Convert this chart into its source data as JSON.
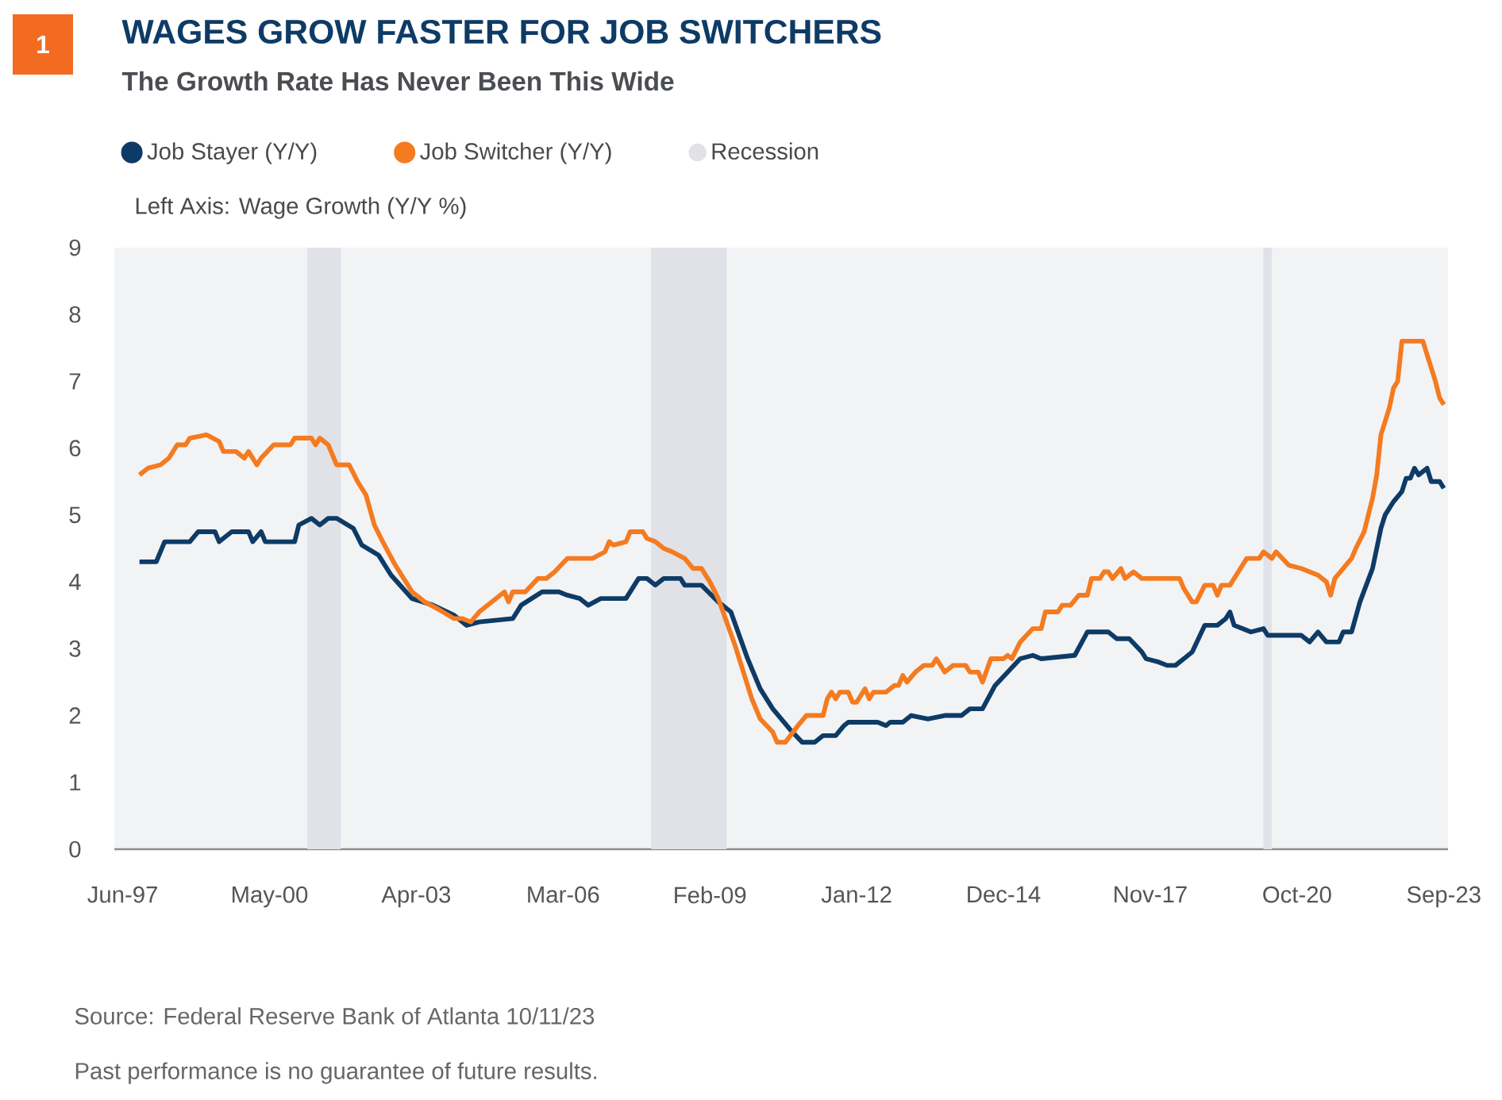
{
  "chart_data": {
    "type": "line",
    "title": "WAGES GROW FASTER FOR JOB SWITCHERS",
    "subtitle": "The Growth Rate Has Never Been This Wide",
    "ylabel": "Left Axis: Wage Growth (Y/Y %)",
    "annotations": [
      "1",
      "Source: Federal Reserve Bank of Atlanta 10/11/23",
      "Past performance is no guarantee of future results."
    ],
    "legend": "top",
    "xlim": [
      "1997-04",
      "2023-10"
    ],
    "xticks": [
      {
        "value": "1997-06",
        "label": "Jun-97"
      },
      {
        "value": "2000-05",
        "label": "May-00"
      },
      {
        "value": "2003-04",
        "label": "Apr-03"
      },
      {
        "value": "2006-03",
        "label": "Mar-06"
      },
      {
        "value": "2009-02",
        "label": "Feb-09"
      },
      {
        "value": "2012-01",
        "label": "Jan-12"
      },
      {
        "value": "2014-12",
        "label": "Dec-14"
      },
      {
        "value": "2017-11",
        "label": "Nov-17"
      },
      {
        "value": "2020-10",
        "label": "Oct-20"
      },
      {
        "value": "2023-09",
        "label": "Sep-23"
      }
    ],
    "ylim": [
      0,
      9
    ],
    "yticks": [
      0,
      1,
      2,
      3,
      4,
      5,
      6,
      7,
      8,
      9
    ],
    "bands": [
      {
        "axis": "x",
        "from": "2001-02",
        "to": "2001-10",
        "label": "Recession",
        "color": "#e1e2e8"
      },
      {
        "axis": "x",
        "from": "2007-12",
        "to": "2009-06",
        "color": "#e1e2e8"
      },
      {
        "axis": "x",
        "from": "2020-02",
        "to": "2020-04",
        "color": "#e1e2e8"
      }
    ],
    "series": [
      {
        "name": "Job Stayer (Y/Y)",
        "color": "#0e3b66",
        "x": [
          "1997-10",
          "1998-02",
          "1998-04",
          "1998-10",
          "1998-12",
          "1999-04",
          "1999-05",
          "1999-08",
          "1999-12",
          "2000-01",
          "2000-03",
          "2000-04",
          "2000-11",
          "2000-12",
          "2001-03",
          "2001-05",
          "2001-07",
          "2001-09",
          "2002-01",
          "2002-03",
          "2002-07",
          "2002-10",
          "2003-03",
          "2003-08",
          "2004-01",
          "2004-04",
          "2004-07",
          "2005-03",
          "2005-05",
          "2005-10",
          "2006-02",
          "2006-04",
          "2006-07",
          "2006-09",
          "2006-12",
          "2007-06",
          "2007-09",
          "2007-11",
          "2008-01",
          "2008-03",
          "2008-07",
          "2008-08",
          "2008-12",
          "2009-04",
          "2009-07",
          "2009-11",
          "2010-02",
          "2010-05",
          "2010-09",
          "2010-12",
          "2011-03",
          "2011-05",
          "2011-08",
          "2011-10",
          "2011-11",
          "2012-06",
          "2012-08",
          "2012-09",
          "2012-12",
          "2013-02",
          "2013-06",
          "2013-10",
          "2014-02",
          "2014-04",
          "2014-07",
          "2014-10",
          "2015-01",
          "2015-04",
          "2015-07",
          "2015-09",
          "2016-05",
          "2016-08",
          "2017-01",
          "2017-03",
          "2017-06",
          "2017-09",
          "2017-10",
          "2018-01",
          "2018-03",
          "2018-05",
          "2018-07",
          "2018-09",
          "2018-12",
          "2019-03",
          "2019-05",
          "2019-06",
          "2019-07",
          "2019-09",
          "2019-11",
          "2020-02",
          "2020-03",
          "2020-11",
          "2021-01",
          "2021-03",
          "2021-05",
          "2021-08",
          "2021-09",
          "2021-11",
          "2022-01",
          "2022-04",
          "2022-06",
          "2022-07",
          "2022-09",
          "2022-11",
          "2022-12",
          "2023-01",
          "2023-02",
          "2023-03",
          "2023-05",
          "2023-06",
          "2023-08",
          "2023-09"
        ],
        "values": [
          4.3,
          4.3,
          4.6,
          4.6,
          4.75,
          4.75,
          4.6,
          4.75,
          4.75,
          4.6,
          4.75,
          4.6,
          4.6,
          4.85,
          4.95,
          4.85,
          4.95,
          4.95,
          4.8,
          4.55,
          4.4,
          4.1,
          3.75,
          3.65,
          3.5,
          3.35,
          3.4,
          3.45,
          3.65,
          3.85,
          3.85,
          3.8,
          3.75,
          3.65,
          3.75,
          3.75,
          4.05,
          4.05,
          3.95,
          4.05,
          4.05,
          3.95,
          3.95,
          3.7,
          3.55,
          2.85,
          2.4,
          2.1,
          1.8,
          1.6,
          1.6,
          1.7,
          1.7,
          1.85,
          1.9,
          1.9,
          1.85,
          1.9,
          1.9,
          2.0,
          1.95,
          2.0,
          2.0,
          2.1,
          2.1,
          2.45,
          2.65,
          2.85,
          2.9,
          2.85,
          2.9,
          3.25,
          3.25,
          3.15,
          3.15,
          2.95,
          2.85,
          2.8,
          2.75,
          2.75,
          2.85,
          2.95,
          3.35,
          3.35,
          3.45,
          3.55,
          3.35,
          3.3,
          3.25,
          3.3,
          3.2,
          3.2,
          3.1,
          3.25,
          3.1,
          3.1,
          3.25,
          3.25,
          3.7,
          4.2,
          4.8,
          5.0,
          5.2,
          5.35,
          5.55,
          5.55,
          5.7,
          5.6,
          5.7,
          5.5,
          5.5,
          5.4
        ]
      },
      {
        "name": "Job Switcher (Y/Y)",
        "color": "#f47b20",
        "x": [
          "1997-10",
          "1997-12",
          "1998-03",
          "1998-05",
          "1998-07",
          "1998-09",
          "1998-10",
          "1999-02",
          "1999-05",
          "1999-06",
          "1999-09",
          "1999-11",
          "1999-12",
          "2000-02",
          "2000-03",
          "2000-06",
          "2000-10",
          "2000-11",
          "2001-03",
          "2001-04",
          "2001-05",
          "2001-07",
          "2001-09",
          "2001-12",
          "2002-02",
          "2002-04",
          "2002-06",
          "2002-08",
          "2002-11",
          "2003-03",
          "2003-06",
          "2003-09",
          "2004-01",
          "2004-03",
          "2004-05",
          "2004-07",
          "2004-11",
          "2005-01",
          "2005-02",
          "2005-03",
          "2005-06",
          "2005-09",
          "2005-11",
          "2006-01",
          "2006-04",
          "2006-10",
          "2007-01",
          "2007-02",
          "2007-03",
          "2007-06",
          "2007-07",
          "2007-10",
          "2007-11",
          "2008-01",
          "2008-03",
          "2008-05",
          "2008-08",
          "2008-10",
          "2008-12",
          "2009-02",
          "2009-04",
          "2009-06",
          "2009-08",
          "2009-10",
          "2009-12",
          "2010-02",
          "2010-05",
          "2010-06",
          "2010-08",
          "2010-11",
          "2011-01",
          "2011-05",
          "2011-06",
          "2011-07",
          "2011-08",
          "2011-09",
          "2011-11",
          "2011-12",
          "2012-01",
          "2012-02",
          "2012-03",
          "2012-04",
          "2012-05",
          "2012-08",
          "2012-10",
          "2012-11",
          "2012-12",
          "2013-01",
          "2013-03",
          "2013-05",
          "2013-07",
          "2013-08",
          "2013-09",
          "2013-10",
          "2013-12",
          "2014-03",
          "2014-04",
          "2014-06",
          "2014-07",
          "2014-09",
          "2014-12",
          "2015-01",
          "2015-02",
          "2015-04",
          "2015-07",
          "2015-09",
          "2015-10",
          "2016-01",
          "2016-02",
          "2016-04",
          "2016-06",
          "2016-08",
          "2016-09",
          "2016-11",
          "2016-12",
          "2017-01",
          "2017-02",
          "2017-04",
          "2017-05",
          "2017-07",
          "2017-09",
          "2018-06",
          "2018-07",
          "2018-09",
          "2018-10",
          "2018-12",
          "2019-02",
          "2019-03",
          "2019-04",
          "2019-06",
          "2019-08",
          "2019-10",
          "2020-01",
          "2020-02",
          "2020-04",
          "2020-05",
          "2020-08",
          "2020-11",
          "2021-01",
          "2021-03",
          "2021-05",
          "2021-06",
          "2021-07",
          "2021-11",
          "2021-12",
          "2022-02",
          "2022-04",
          "2022-05",
          "2022-06",
          "2022-08",
          "2022-09",
          "2022-10",
          "2022-11",
          "2023-04",
          "2023-05",
          "2023-07",
          "2023-08",
          "2023-09"
        ],
        "values": [
          5.6,
          5.7,
          5.75,
          5.85,
          6.05,
          6.05,
          6.15,
          6.2,
          6.1,
          5.95,
          5.95,
          5.85,
          5.95,
          5.75,
          5.85,
          6.05,
          6.05,
          6.15,
          6.15,
          6.05,
          6.15,
          6.05,
          5.75,
          5.75,
          5.5,
          5.3,
          4.85,
          4.6,
          4.25,
          3.85,
          3.7,
          3.6,
          3.45,
          3.45,
          3.4,
          3.55,
          3.75,
          3.85,
          3.7,
          3.85,
          3.85,
          4.05,
          4.05,
          4.15,
          4.35,
          4.35,
          4.45,
          4.6,
          4.55,
          4.6,
          4.75,
          4.75,
          4.65,
          4.6,
          4.5,
          4.45,
          4.35,
          4.2,
          4.2,
          4.0,
          3.75,
          3.4,
          3.05,
          2.65,
          2.25,
          1.95,
          1.75,
          1.6,
          1.6,
          1.85,
          2.0,
          2.0,
          2.25,
          2.35,
          2.25,
          2.35,
          2.35,
          2.2,
          2.2,
          2.3,
          2.4,
          2.25,
          2.35,
          2.35,
          2.45,
          2.45,
          2.6,
          2.5,
          2.65,
          2.75,
          2.75,
          2.85,
          2.75,
          2.65,
          2.75,
          2.75,
          2.65,
          2.65,
          2.5,
          2.85,
          2.85,
          2.9,
          2.85,
          3.1,
          3.3,
          3.3,
          3.55,
          3.55,
          3.65,
          3.65,
          3.8,
          3.8,
          4.05,
          4.05,
          4.15,
          4.15,
          4.05,
          4.2,
          4.05,
          4.15,
          4.05,
          4.05,
          3.9,
          3.7,
          3.7,
          3.95,
          3.95,
          3.8,
          3.95,
          3.95,
          4.15,
          4.35,
          4.35,
          4.45,
          4.35,
          4.45,
          4.25,
          4.2,
          4.15,
          4.1,
          4.0,
          3.8,
          4.05,
          4.35,
          4.5,
          4.75,
          5.25,
          5.6,
          6.2,
          6.6,
          6.9,
          7.0,
          7.6,
          7.6,
          7.4,
          7.0,
          6.75,
          6.65
        ]
      }
    ]
  }
}
